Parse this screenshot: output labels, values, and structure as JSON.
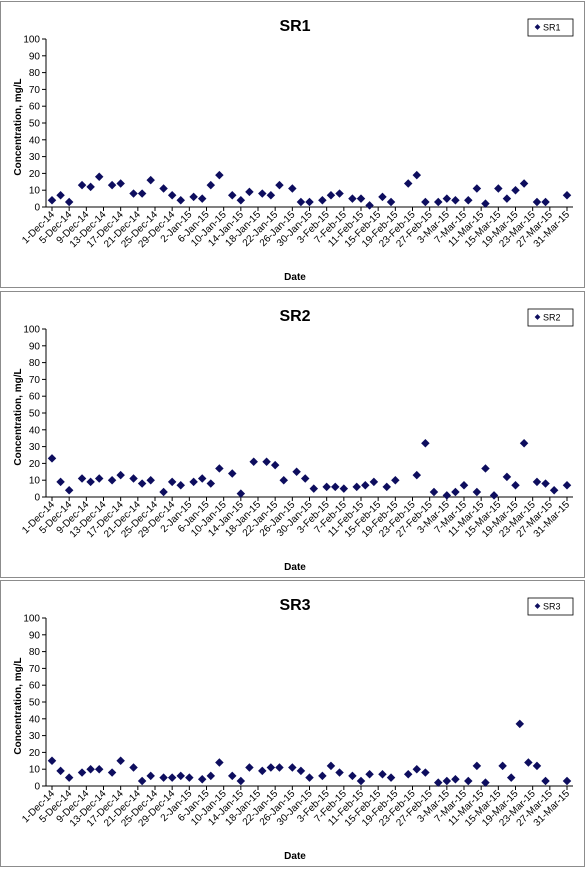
{
  "chart_data": [
    {
      "type": "scatter",
      "title": "SR1",
      "xlabel": "Date",
      "ylabel": "Concentration, mg/L",
      "ylim": [
        0,
        100
      ],
      "yticks": [
        0,
        10,
        20,
        30,
        40,
        50,
        60,
        70,
        80,
        90,
        100
      ],
      "xticks": [
        "1-Dec-14",
        "5-Dec-14",
        "9-Dec-14",
        "13-Dec-14",
        "17-Dec-14",
        "21-Dec-14",
        "25-Dec-14",
        "29-Dec-14",
        "2-Jan-15",
        "6-Jan-15",
        "10-Jan-15",
        "14-Jan-15",
        "18-Jan-15",
        "22-Jan-15",
        "26-Jan-15",
        "30-Jan-15",
        "3-Feb-15",
        "7-Feb-15",
        "11-Feb-15",
        "15-Feb-15",
        "19-Feb-15",
        "23-Feb-15",
        "27-Feb-15",
        "3-Mar-15",
        "7-Mar-15",
        "11-Mar-15",
        "15-Mar-15",
        "19-Mar-15",
        "23-Mar-15",
        "27-Mar-15",
        "31-Mar-15"
      ],
      "grid": false,
      "legend_position": "top-right",
      "series": [
        {
          "name": "SR1",
          "color": "#0d0d5e",
          "x": [
            "1-Dec-14",
            "3-Dec-14",
            "5-Dec-14",
            "8-Dec-14",
            "10-Dec-14",
            "12-Dec-14",
            "15-Dec-14",
            "17-Dec-14",
            "20-Dec-14",
            "22-Dec-14",
            "24-Dec-14",
            "27-Dec-14",
            "29-Dec-14",
            "31-Dec-14",
            "3-Jan-15",
            "5-Jan-15",
            "7-Jan-15",
            "9-Jan-15",
            "12-Jan-15",
            "14-Jan-15",
            "16-Jan-15",
            "19-Jan-15",
            "21-Jan-15",
            "23-Jan-15",
            "26-Jan-15",
            "28-Jan-15",
            "30-Jan-15",
            "2-Feb-15",
            "4-Feb-15",
            "6-Feb-15",
            "9-Feb-15",
            "11-Feb-15",
            "13-Feb-15",
            "16-Feb-15",
            "18-Feb-15",
            "22-Feb-15",
            "24-Feb-15",
            "26-Feb-15",
            "1-Mar-15",
            "3-Mar-15",
            "5-Mar-15",
            "8-Mar-15",
            "10-Mar-15",
            "12-Mar-15",
            "15-Mar-15",
            "17-Mar-15",
            "19-Mar-15",
            "21-Mar-15",
            "24-Mar-15",
            "26-Mar-15",
            "31-Mar-15"
          ],
          "values": [
            4,
            7,
            3,
            13,
            12,
            18,
            13,
            14,
            8,
            8,
            16,
            11,
            7,
            4,
            6,
            5,
            13,
            19,
            7,
            4,
            9,
            8,
            7,
            13,
            11,
            3,
            3,
            4,
            7,
            8,
            5,
            5,
            1,
            6,
            3,
            14,
            19,
            3,
            3,
            5,
            4,
            4,
            11,
            2,
            11,
            5,
            10,
            14,
            3,
            3,
            7
          ]
        }
      ]
    },
    {
      "type": "scatter",
      "title": "SR2",
      "xlabel": "Date",
      "ylabel": "Concentration, mg/L",
      "ylim": [
        0,
        100
      ],
      "yticks": [
        0,
        10,
        20,
        30,
        40,
        50,
        60,
        70,
        80,
        90,
        100
      ],
      "xticks": [
        "1-Dec-14",
        "5-Dec-14",
        "9-Dec-14",
        "13-Dec-14",
        "17-Dec-14",
        "21-Dec-14",
        "25-Dec-14",
        "29-Dec-14",
        "2-Jan-15",
        "6-Jan-15",
        "10-Jan-15",
        "14-Jan-15",
        "18-Jan-15",
        "22-Jan-15",
        "26-Jan-15",
        "30-Jan-15",
        "3-Feb-15",
        "7-Feb-15",
        "11-Feb-15",
        "15-Feb-15",
        "19-Feb-15",
        "23-Feb-15",
        "27-Feb-15",
        "3-Mar-15",
        "7-Mar-15",
        "11-Mar-15",
        "15-Mar-15",
        "19-Mar-15",
        "23-Mar-15",
        "27-Mar-15",
        "31-Mar-15"
      ],
      "grid": false,
      "legend_position": "top-right",
      "series": [
        {
          "name": "SR2",
          "color": "#0d0d5e",
          "x": [
            "1-Dec-14",
            "3-Dec-14",
            "5-Dec-14",
            "8-Dec-14",
            "10-Dec-14",
            "12-Dec-14",
            "15-Dec-14",
            "17-Dec-14",
            "20-Dec-14",
            "22-Dec-14",
            "24-Dec-14",
            "27-Dec-14",
            "29-Dec-14",
            "31-Dec-14",
            "3-Jan-15",
            "5-Jan-15",
            "7-Jan-15",
            "9-Jan-15",
            "12-Jan-15",
            "14-Jan-15",
            "17-Jan-15",
            "20-Jan-15",
            "22-Jan-15",
            "24-Jan-15",
            "27-Jan-15",
            "29-Jan-15",
            "31-Jan-15",
            "3-Feb-15",
            "5-Feb-15",
            "7-Feb-15",
            "10-Feb-15",
            "12-Feb-15",
            "14-Feb-15",
            "17-Feb-15",
            "19-Feb-15",
            "24-Feb-15",
            "26-Feb-15",
            "28-Feb-15",
            "3-Mar-15",
            "5-Mar-15",
            "7-Mar-15",
            "10-Mar-15",
            "12-Mar-15",
            "14-Mar-15",
            "17-Mar-15",
            "19-Mar-15",
            "21-Mar-15",
            "24-Mar-15",
            "26-Mar-15",
            "28-Mar-15",
            "31-Mar-15"
          ],
          "values": [
            23,
            9,
            4,
            11,
            9,
            11,
            10,
            13,
            11,
            8,
            10,
            3,
            9,
            7,
            9,
            11,
            8,
            17,
            14,
            2,
            21,
            21,
            19,
            10,
            15,
            11,
            5,
            6,
            6,
            5,
            6,
            7,
            9,
            6,
            10,
            13,
            32,
            3,
            1,
            3,
            7,
            3,
            17,
            1,
            12,
            7,
            32,
            9,
            8,
            4,
            7
          ]
        }
      ]
    },
    {
      "type": "scatter",
      "title": "SR3",
      "xlabel": "Date",
      "ylabel": "Concentration, mg/L",
      "ylim": [
        0,
        100
      ],
      "yticks": [
        0,
        10,
        20,
        30,
        40,
        50,
        60,
        70,
        80,
        90,
        100
      ],
      "xticks": [
        "1-Dec-14",
        "5-Dec-14",
        "9-Dec-14",
        "13-Dec-14",
        "17-Dec-14",
        "21-Dec-14",
        "25-Dec-14",
        "29-Dec-14",
        "2-Jan-15",
        "6-Jan-15",
        "10-Jan-15",
        "14-Jan-15",
        "18-Jan-15",
        "22-Jan-15",
        "26-Jan-15",
        "30-Jan-15",
        "3-Feb-15",
        "7-Feb-15",
        "11-Feb-15",
        "15-Feb-15",
        "19-Feb-15",
        "23-Feb-15",
        "27-Feb-15",
        "3-Mar-15",
        "7-Mar-15",
        "11-Mar-15",
        "15-Mar-15",
        "19-Mar-15",
        "23-Mar-15",
        "27-Mar-15",
        "31-Mar-15"
      ],
      "grid": false,
      "legend_position": "top-right",
      "series": [
        {
          "name": "SR3",
          "color": "#0d0d5e",
          "x": [
            "1-Dec-14",
            "3-Dec-14",
            "5-Dec-14",
            "8-Dec-14",
            "10-Dec-14",
            "12-Dec-14",
            "15-Dec-14",
            "17-Dec-14",
            "20-Dec-14",
            "22-Dec-14",
            "24-Dec-14",
            "27-Dec-14",
            "29-Dec-14",
            "31-Dec-14",
            "2-Jan-15",
            "5-Jan-15",
            "7-Jan-15",
            "9-Jan-15",
            "12-Jan-15",
            "14-Jan-15",
            "16-Jan-15",
            "19-Jan-15",
            "21-Jan-15",
            "23-Jan-15",
            "26-Jan-15",
            "28-Jan-15",
            "30-Jan-15",
            "2-Feb-15",
            "4-Feb-15",
            "6-Feb-15",
            "9-Feb-15",
            "11-Feb-15",
            "13-Feb-15",
            "16-Feb-15",
            "18-Feb-15",
            "22-Feb-15",
            "24-Feb-15",
            "26-Feb-15",
            "1-Mar-15",
            "3-Mar-15",
            "5-Mar-15",
            "8-Mar-15",
            "10-Mar-15",
            "12-Mar-15",
            "16-Mar-15",
            "18-Mar-15",
            "20-Mar-15",
            "22-Mar-15",
            "24-Mar-15",
            "26-Mar-15",
            "31-Mar-15"
          ],
          "values": [
            15,
            9,
            5,
            8,
            10,
            10,
            8,
            15,
            11,
            3,
            6,
            5,
            5,
            6,
            5,
            4,
            6,
            14,
            6,
            3,
            11,
            9,
            11,
            11,
            11,
            9,
            5,
            6,
            12,
            8,
            6,
            3,
            7,
            7,
            5,
            7,
            10,
            8,
            2,
            3,
            4,
            3,
            12,
            2,
            12,
            5,
            37,
            14,
            12,
            3,
            3
          ]
        }
      ]
    }
  ]
}
